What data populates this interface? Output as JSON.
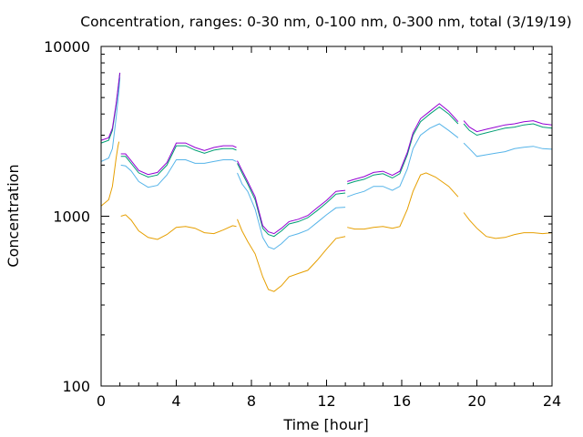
{
  "chart_data": {
    "type": "line",
    "title": "Concentration, ranges: 0-30 nm, 0-100 nm, 0-300 nm, total (3/19/19)",
    "xlabel": "Time [hour]",
    "ylabel": "Concentration",
    "xlim": [
      0,
      24
    ],
    "ylim": [
      100,
      10000
    ],
    "yscale": "log",
    "xticks": [
      0,
      4,
      8,
      12,
      16,
      20,
      24
    ],
    "xtick_labels": [
      "0",
      "4",
      "8",
      "12",
      "16",
      "20",
      "24"
    ],
    "yticks": [
      100,
      1000,
      10000
    ],
    "ytick_labels": [
      "100",
      "1000",
      "10000"
    ],
    "grid": false,
    "legend": "none",
    "series": [
      {
        "color": "#e69f00",
        "segments": [
          [
            [
              0,
              1150
            ],
            [
              0.4,
              1250
            ],
            [
              0.6,
              1500
            ],
            [
              0.8,
              2200
            ],
            [
              0.9,
              2600
            ],
            [
              0.95,
              2750
            ]
          ],
          [
            [
              1.05,
              1000
            ],
            [
              1.3,
              1020
            ],
            [
              1.6,
              950
            ],
            [
              2,
              820
            ],
            [
              2.5,
              750
            ],
            [
              3,
              730
            ],
            [
              3.5,
              780
            ],
            [
              4,
              860
            ],
            [
              4.5,
              870
            ],
            [
              5,
              850
            ],
            [
              5.5,
              800
            ],
            [
              6,
              790
            ],
            [
              6.5,
              830
            ],
            [
              7,
              880
            ],
            [
              7.2,
              870
            ]
          ],
          [
            [
              7.25,
              960
            ],
            [
              7.5,
              820
            ],
            [
              7.8,
              710
            ],
            [
              8.2,
              600
            ],
            [
              8.6,
              440
            ],
            [
              8.9,
              370
            ],
            [
              9.2,
              360
            ],
            [
              9.6,
              390
            ],
            [
              10,
              440
            ],
            [
              10.5,
              460
            ],
            [
              11,
              480
            ],
            [
              11.5,
              550
            ],
            [
              12,
              640
            ],
            [
              12.5,
              740
            ],
            [
              13,
              760
            ]
          ],
          [
            [
              13.1,
              860
            ],
            [
              13.5,
              840
            ],
            [
              14,
              840
            ],
            [
              14.5,
              860
            ],
            [
              15,
              870
            ],
            [
              15.5,
              850
            ],
            [
              15.9,
              870
            ],
            [
              16.3,
              1100
            ],
            [
              16.6,
              1400
            ],
            [
              17,
              1750
            ],
            [
              17.3,
              1800
            ],
            [
              17.8,
              1700
            ],
            [
              18.5,
              1500
            ],
            [
              19,
              1300
            ]
          ],
          [
            [
              19.3,
              1050
            ],
            [
              19.6,
              950
            ],
            [
              20,
              850
            ],
            [
              20.5,
              760
            ],
            [
              21,
              740
            ],
            [
              21.5,
              750
            ],
            [
              22,
              780
            ],
            [
              22.5,
              800
            ],
            [
              23,
              800
            ],
            [
              23.5,
              790
            ],
            [
              24,
              800
            ]
          ]
        ]
      },
      {
        "color": "#56b4e9",
        "segments": [
          [
            [
              0,
              2100
            ],
            [
              0.4,
              2200
            ],
            [
              0.6,
              2500
            ],
            [
              0.8,
              3800
            ],
            [
              0.95,
              5500
            ],
            [
              1,
              6600
            ]
          ],
          [
            [
              1.05,
              2000
            ],
            [
              1.3,
              1980
            ],
            [
              1.6,
              1850
            ],
            [
              2,
              1600
            ],
            [
              2.5,
              1480
            ],
            [
              3,
              1520
            ],
            [
              3.5,
              1750
            ],
            [
              4,
              2150
            ],
            [
              4.5,
              2150
            ],
            [
              5,
              2050
            ],
            [
              5.5,
              2050
            ],
            [
              6,
              2100
            ],
            [
              6.5,
              2150
            ],
            [
              7,
              2150
            ],
            [
              7.2,
              2100
            ]
          ],
          [
            [
              7.25,
              1800
            ],
            [
              7.5,
              1550
            ],
            [
              7.8,
              1400
            ],
            [
              8.2,
              1100
            ],
            [
              8.6,
              750
            ],
            [
              8.9,
              660
            ],
            [
              9.2,
              640
            ],
            [
              9.6,
              690
            ],
            [
              10,
              760
            ],
            [
              10.5,
              790
            ],
            [
              11,
              830
            ],
            [
              11.5,
              920
            ],
            [
              12,
              1020
            ],
            [
              12.5,
              1120
            ],
            [
              13,
              1130
            ]
          ],
          [
            [
              13.1,
              1300
            ],
            [
              13.5,
              1350
            ],
            [
              14,
              1400
            ],
            [
              14.5,
              1500
            ],
            [
              15,
              1500
            ],
            [
              15.5,
              1420
            ],
            [
              15.9,
              1500
            ],
            [
              16.3,
              1900
            ],
            [
              16.6,
              2500
            ],
            [
              17,
              3000
            ],
            [
              17.5,
              3300
            ],
            [
              18,
              3500
            ],
            [
              18.5,
              3200
            ],
            [
              19,
              2900
            ]
          ],
          [
            [
              19.3,
              2700
            ],
            [
              19.6,
              2500
            ],
            [
              20,
              2250
            ],
            [
              20.5,
              2300
            ],
            [
              21,
              2350
            ],
            [
              21.5,
              2400
            ],
            [
              22,
              2500
            ],
            [
              22.5,
              2550
            ],
            [
              23,
              2580
            ],
            [
              23.5,
              2500
            ],
            [
              24,
              2480
            ]
          ]
        ]
      },
      {
        "color": "#009e73",
        "segments": [
          [
            [
              0,
              2700
            ],
            [
              0.4,
              2800
            ],
            [
              0.6,
              3200
            ],
            [
              0.8,
              4500
            ],
            [
              0.95,
              6200
            ],
            [
              1,
              7000
            ]
          ],
          [
            [
              1.05,
              2250
            ],
            [
              1.3,
              2250
            ],
            [
              1.6,
              2050
            ],
            [
              2,
              1800
            ],
            [
              2.5,
              1700
            ],
            [
              3,
              1750
            ],
            [
              3.5,
              2000
            ],
            [
              4,
              2600
            ],
            [
              4.5,
              2600
            ],
            [
              5,
              2450
            ],
            [
              5.5,
              2350
            ],
            [
              6,
              2450
            ],
            [
              6.5,
              2500
            ],
            [
              7,
              2500
            ],
            [
              7.2,
              2450
            ]
          ],
          [
            [
              7.25,
              2050
            ],
            [
              7.5,
              1800
            ],
            [
              7.8,
              1550
            ],
            [
              8.2,
              1250
            ],
            [
              8.6,
              850
            ],
            [
              8.9,
              780
            ],
            [
              9.2,
              760
            ],
            [
              9.6,
              820
            ],
            [
              10,
              900
            ],
            [
              10.5,
              930
            ],
            [
              11,
              980
            ],
            [
              11.5,
              1080
            ],
            [
              12,
              1200
            ],
            [
              12.5,
              1350
            ],
            [
              13,
              1370
            ]
          ],
          [
            [
              13.1,
              1550
            ],
            [
              13.5,
              1600
            ],
            [
              14,
              1650
            ],
            [
              14.5,
              1750
            ],
            [
              15,
              1780
            ],
            [
              15.5,
              1680
            ],
            [
              15.9,
              1780
            ],
            [
              16.3,
              2300
            ],
            [
              16.6,
              3000
            ],
            [
              17,
              3600
            ],
            [
              17.5,
              4000
            ],
            [
              18,
              4400
            ],
            [
              18.5,
              4000
            ],
            [
              19,
              3500
            ]
          ],
          [
            [
              19.3,
              3500
            ],
            [
              19.6,
              3200
            ],
            [
              20,
              3000
            ],
            [
              20.5,
              3100
            ],
            [
              21,
              3200
            ],
            [
              21.5,
              3300
            ],
            [
              22,
              3350
            ],
            [
              22.5,
              3450
            ],
            [
              23,
              3500
            ],
            [
              23.5,
              3350
            ],
            [
              24,
              3300
            ]
          ]
        ]
      },
      {
        "color": "#9400d3",
        "segments": [
          [
            [
              0,
              2800
            ],
            [
              0.4,
              2900
            ],
            [
              0.6,
              3300
            ],
            [
              0.8,
              4600
            ],
            [
              0.95,
              6300
            ],
            [
              1,
              7000
            ]
          ],
          [
            [
              1.05,
              2330
            ],
            [
              1.3,
              2330
            ],
            [
              1.6,
              2120
            ],
            [
              2,
              1860
            ],
            [
              2.5,
              1760
            ],
            [
              3,
              1810
            ],
            [
              3.5,
              2070
            ],
            [
              4,
              2700
            ],
            [
              4.5,
              2700
            ],
            [
              5,
              2540
            ],
            [
              5.5,
              2440
            ],
            [
              6,
              2540
            ],
            [
              6.5,
              2600
            ],
            [
              7,
              2600
            ],
            [
              7.2,
              2540
            ]
          ],
          [
            [
              7.25,
              2120
            ],
            [
              7.5,
              1860
            ],
            [
              7.8,
              1600
            ],
            [
              8.2,
              1300
            ],
            [
              8.6,
              880
            ],
            [
              8.9,
              810
            ],
            [
              9.2,
              790
            ],
            [
              9.6,
              850
            ],
            [
              10,
              930
            ],
            [
              10.5,
              960
            ],
            [
              11,
              1010
            ],
            [
              11.5,
              1120
            ],
            [
              12,
              1240
            ],
            [
              12.5,
              1400
            ],
            [
              13,
              1420
            ]
          ],
          [
            [
              13.1,
              1600
            ],
            [
              13.5,
              1650
            ],
            [
              14,
              1710
            ],
            [
              14.5,
              1810
            ],
            [
              15,
              1840
            ],
            [
              15.5,
              1740
            ],
            [
              15.9,
              1840
            ],
            [
              16.3,
              2380
            ],
            [
              16.6,
              3100
            ],
            [
              17,
              3750
            ],
            [
              17.5,
              4150
            ],
            [
              18,
              4600
            ],
            [
              18.5,
              4150
            ],
            [
              19,
              3600
            ]
          ],
          [
            [
              19.3,
              3650
            ],
            [
              19.6,
              3350
            ],
            [
              20,
              3150
            ],
            [
              20.5,
              3250
            ],
            [
              21,
              3350
            ],
            [
              21.5,
              3450
            ],
            [
              22,
              3500
            ],
            [
              22.5,
              3600
            ],
            [
              23,
              3650
            ],
            [
              23.5,
              3500
            ],
            [
              24,
              3450
            ]
          ]
        ]
      }
    ]
  }
}
